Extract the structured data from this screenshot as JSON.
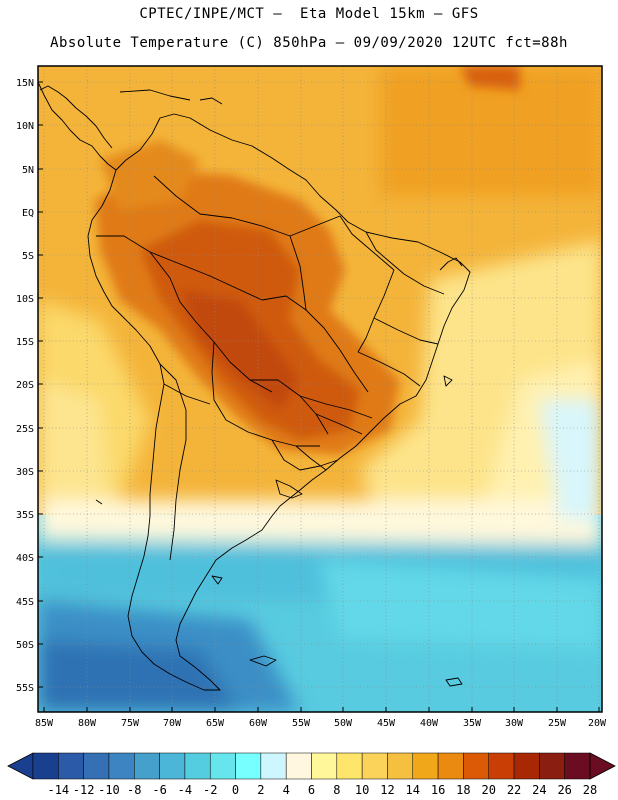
{
  "header": {
    "line1": "CPTEC/INPE/MCT –  Eta Model 15km – GFS",
    "line2": "Absolute Temperature (C) 850hPa – 09/09/2020 12UTC fct=88h"
  },
  "map": {
    "lat_labels": [
      "15N",
      "10N",
      "5N",
      "EQ",
      "5S",
      "10S",
      "15S",
      "20S",
      "25S",
      "30S",
      "35S",
      "40S",
      "45S",
      "50S",
      "55S"
    ],
    "lon_labels": [
      "85W",
      "80W",
      "75W",
      "70W",
      "65W",
      "60W",
      "55W",
      "50W",
      "45W",
      "40W",
      "35W",
      "30W",
      "25W",
      "20W"
    ]
  },
  "colorbar": {
    "labels": [
      "-14",
      "-12",
      "-10",
      "-8",
      "-6",
      "-4",
      "-2",
      "0",
      "2",
      "4",
      "6",
      "8",
      "10",
      "12",
      "14",
      "16",
      "18",
      "20",
      "22",
      "24",
      "26",
      "28"
    ],
    "colors": [
      "#1a3f8f",
      "#2a5aa8",
      "#3570b5",
      "#3c85c2",
      "#45a0cc",
      "#4cb6d8",
      "#55cde0",
      "#66e6ec",
      "#77ffff",
      "#cdf6ff",
      "#fff7e0",
      "#fff79a",
      "#ffe66a",
      "#fcd35a",
      "#f5c040",
      "#f0a81a",
      "#ea8a10",
      "#dc5a06",
      "#c83e04",
      "#a82806",
      "#8a1e10",
      "#6a0c22"
    ]
  },
  "colors": {
    "cold_deep": "#2e6fb0",
    "cold": "#4ab4d8",
    "cool": "#5cd2e6",
    "pale": "#fff8dc",
    "warm_light": "#fde68a",
    "warm": "#f5b430",
    "orange": "#ef9a1c",
    "hot": "#d45a0a"
  }
}
